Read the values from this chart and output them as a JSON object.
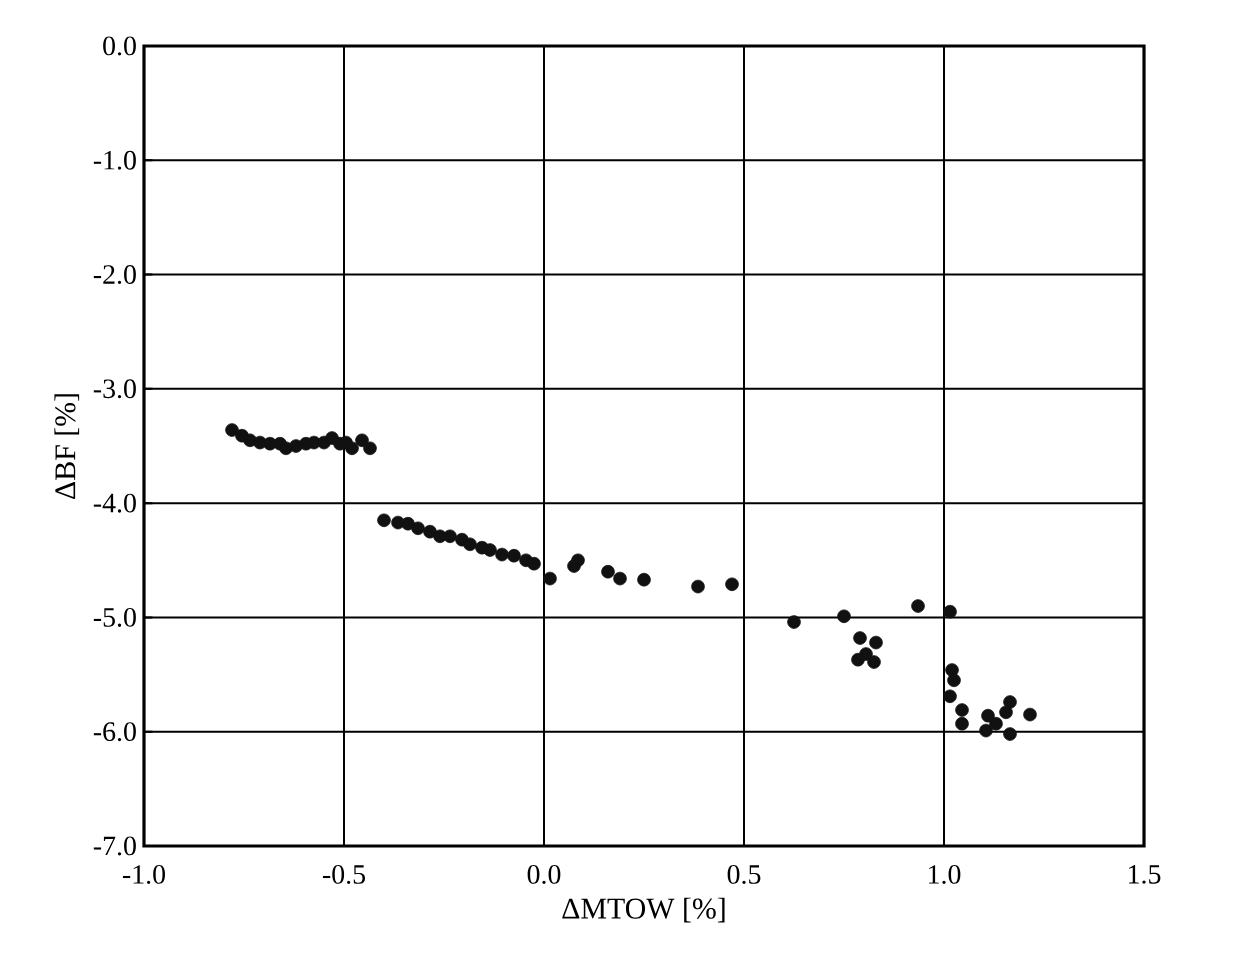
{
  "chart_data": {
    "type": "scatter",
    "xlabel": "ΔMTOW [%]",
    "ylabel": "ΔBF [%]",
    "marker": "circle",
    "grid": true,
    "xlim": [
      -1.0,
      1.5
    ],
    "ylim": [
      -7.0,
      0.0
    ],
    "xticks": [
      {
        "value": -1.0,
        "label": "-1.0"
      },
      {
        "value": -0.5,
        "label": "-0.5"
      },
      {
        "value": 0,
        "label": "0.0"
      },
      {
        "value": 0.5,
        "label": "0.5"
      },
      {
        "value": 1.0,
        "label": "1.0"
      },
      {
        "value": 1.5,
        "label": "1.5"
      }
    ],
    "yticks": [
      {
        "value": 0,
        "label": "0.0"
      },
      {
        "value": -1,
        "label": "-1.0"
      },
      {
        "value": -2,
        "label": "-2.0"
      },
      {
        "value": -3,
        "label": "-3.0"
      },
      {
        "value": -4,
        "label": "-4.0"
      },
      {
        "value": -5,
        "label": "-5.0"
      },
      {
        "value": -6,
        "label": "-6.0"
      },
      {
        "value": -7,
        "label": "-7.0"
      }
    ],
    "series": [
      {
        "color": "#111111",
        "x": [
          -0.78,
          -0.755,
          -0.735,
          -0.71,
          -0.685,
          -0.66,
          -0.645,
          -0.62,
          -0.595,
          -0.575,
          -0.55,
          -0.53,
          -0.51,
          -0.495,
          -0.48,
          -0.455,
          -0.435,
          -0.4,
          -0.365,
          -0.34,
          -0.315,
          -0.285,
          -0.26,
          -0.235,
          -0.205,
          -0.185,
          -0.155,
          -0.135,
          -0.105,
          -0.075,
          -0.045,
          -0.025,
          0.015,
          0.075,
          0.085,
          0.16,
          0.19,
          0.25,
          0.385,
          0.47,
          0.625,
          0.75,
          0.79,
          0.805,
          0.825,
          0.785,
          0.83,
          0.935,
          1.015,
          1.02,
          1.025,
          1.015,
          1.045,
          1.045,
          1.105,
          1.13,
          1.155,
          1.165,
          1.165,
          1.215,
          1.11
        ],
        "values": [
          -3.36,
          -3.41,
          -3.45,
          -3.47,
          -3.48,
          -3.48,
          -3.52,
          -3.5,
          -3.48,
          -3.47,
          -3.47,
          -3.43,
          -3.48,
          -3.47,
          -3.52,
          -3.45,
          -3.52,
          -4.15,
          -4.17,
          -4.18,
          -4.22,
          -4.25,
          -4.29,
          -4.29,
          -4.32,
          -4.36,
          -4.39,
          -4.41,
          -4.45,
          -4.46,
          -4.5,
          -4.53,
          -4.66,
          -4.55,
          -4.5,
          -4.6,
          -4.66,
          -4.67,
          -4.73,
          -4.71,
          -5.04,
          -4.99,
          -5.18,
          -5.32,
          -5.39,
          -5.37,
          -5.22,
          -4.9,
          -4.95,
          -5.46,
          -5.55,
          -5.69,
          -5.81,
          -5.93,
          -5.99,
          -5.93,
          -5.83,
          -6.02,
          -5.74,
          -5.85,
          -5.86
        ]
      }
    ]
  }
}
